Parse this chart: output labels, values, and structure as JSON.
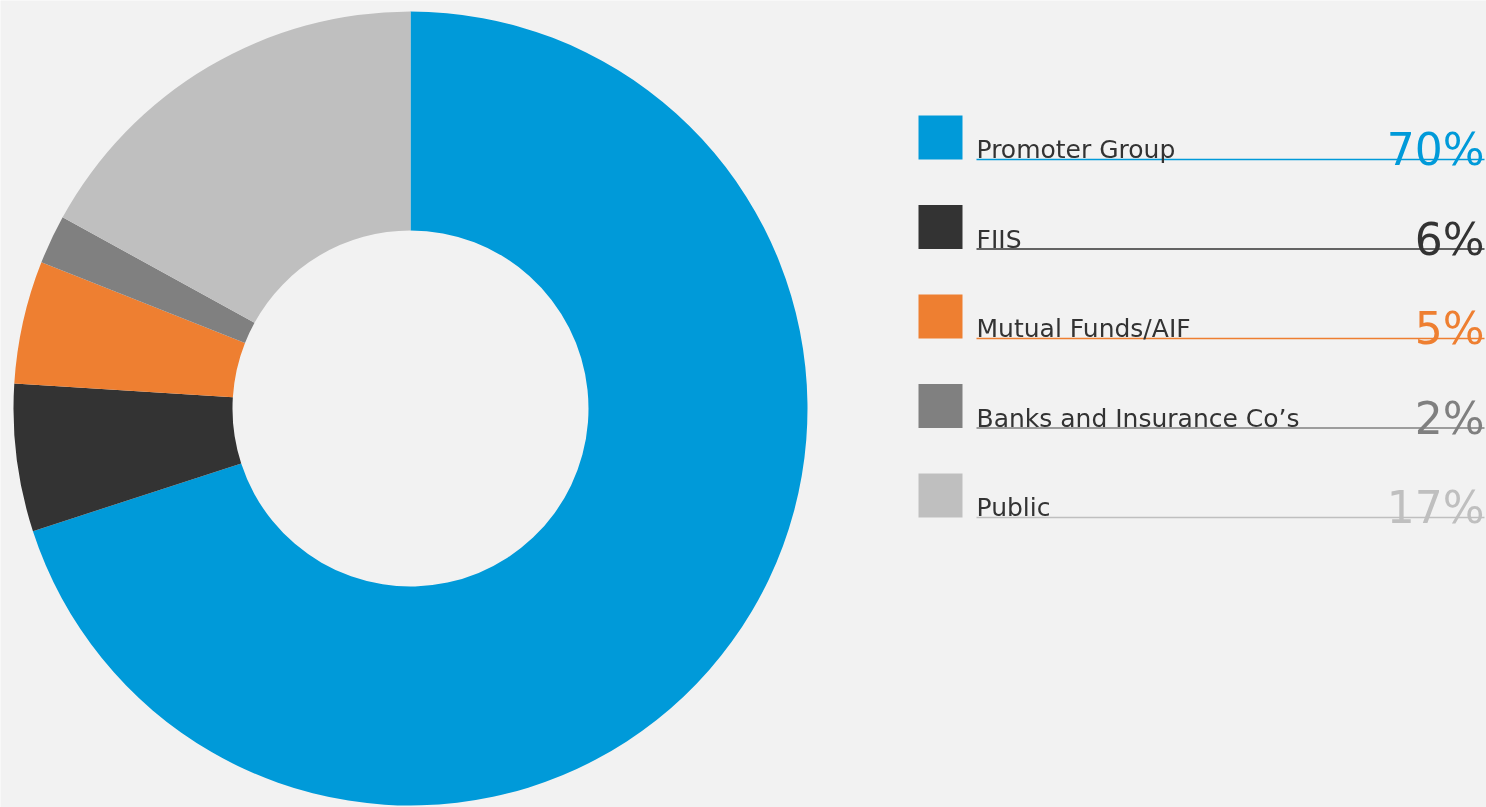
{
  "chart_data": {
    "type": "donut",
    "categories": [
      "Promoter Group",
      "FIIS",
      "Mutual Funds/AIF",
      "Banks and Insurance Co’s",
      "Public"
    ],
    "values": [
      70,
      6,
      5,
      2,
      17
    ],
    "colors": [
      "#009ad9",
      "#333333",
      "#ee7f31",
      "#808080",
      "#bfbfbf"
    ],
    "value_labels": [
      "70%",
      "6%",
      "5%",
      "2%",
      "17%"
    ],
    "legend": "right"
  }
}
